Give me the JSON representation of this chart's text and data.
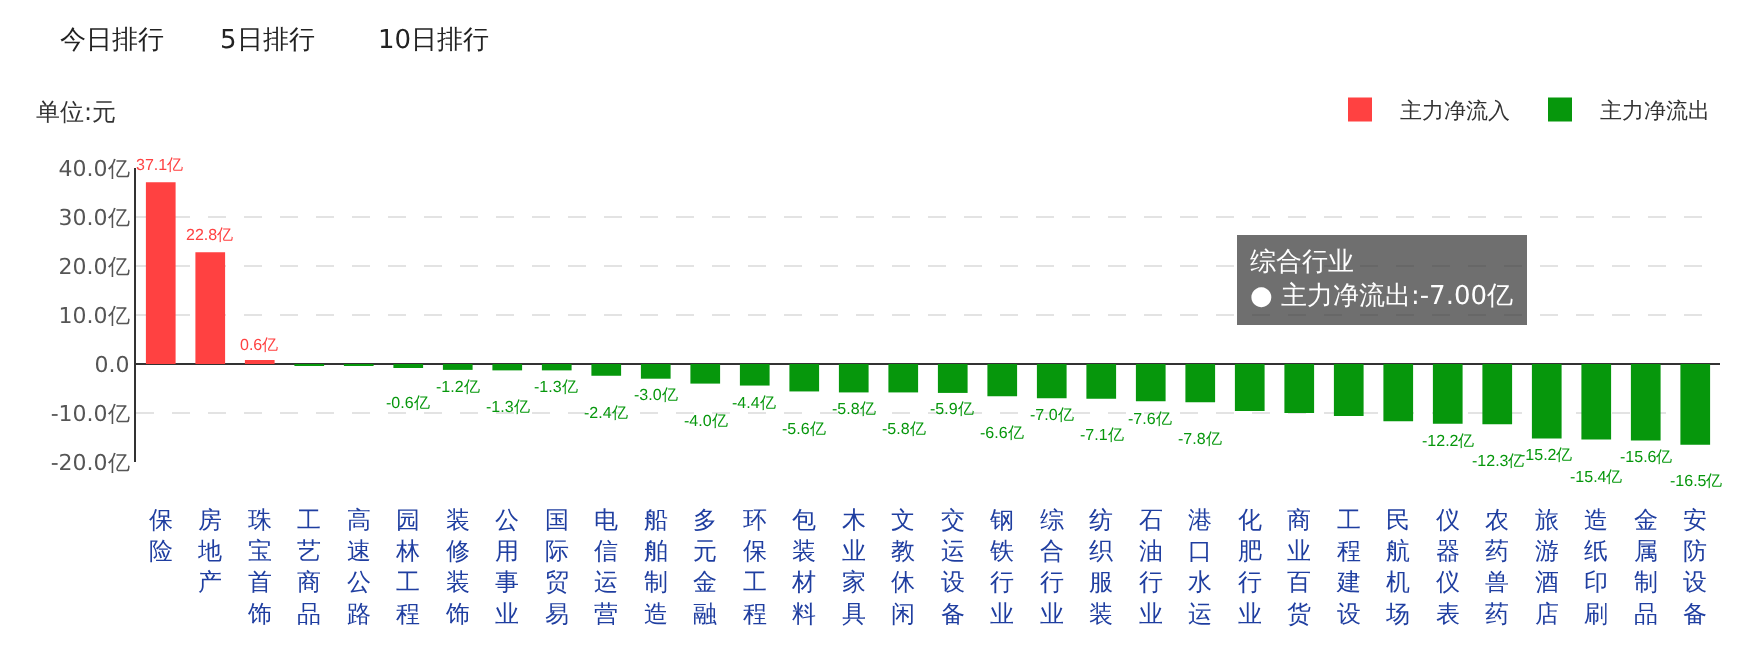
{
  "chart_data": {
    "type": "bar",
    "categories": [
      "保险",
      "房地产",
      "珠宝首饰",
      "工艺商品",
      "高速公路",
      "园林工程",
      "装修装饰",
      "公用事业",
      "国际贸易",
      "电信运营",
      "船舶制造",
      "多元金融",
      "环保工程",
      "包装材料",
      "木业家具",
      "文教休闲",
      "交运设备",
      "钢铁行业",
      "综合行业",
      "纺织服装",
      "石油行业",
      "港口水运",
      "化肥行业",
      "商业百货",
      "工程建设",
      "民航机场",
      "仪器仪表",
      "农药兽药",
      "旅游酒店",
      "造纸印刷",
      "金属制品",
      "安防设备"
    ],
    "series": [
      {
        "name": "主力净流入",
        "color": "#ff4141",
        "values": [
          37.1,
          22.8,
          0.6,
          null,
          null,
          null,
          null,
          null,
          null,
          null,
          null,
          null,
          null,
          null,
          null,
          null,
          null,
          null,
          null,
          null,
          null,
          null,
          null,
          null,
          null,
          null,
          null,
          null,
          null,
          null,
          null,
          null
        ],
        "value_labels": [
          "37.1亿",
          "22.8亿",
          "0.6亿",
          null,
          null,
          null,
          null,
          null,
          null,
          null,
          null,
          null,
          null,
          null,
          null,
          null,
          null,
          null,
          null,
          null,
          null,
          null,
          null,
          null,
          null,
          null,
          null,
          null,
          null,
          null,
          null,
          null
        ]
      },
      {
        "name": "主力净流出",
        "color": "#06970c",
        "values": [
          null,
          null,
          null,
          -0.1,
          -0.2,
          -0.6,
          -1.2,
          -1.3,
          -1.3,
          -2.4,
          -3.0,
          -4.0,
          -4.4,
          -5.6,
          -5.8,
          -5.8,
          -5.9,
          -6.6,
          -7.0,
          -7.1,
          -7.6,
          -7.8,
          -9.6,
          -10.0,
          -10.6,
          -11.7,
          -12.2,
          -12.3,
          -15.2,
          -15.4,
          -15.6,
          -16.5
        ],
        "value_labels": [
          null,
          null,
          null,
          null,
          null,
          "-0.6亿",
          "-1.2亿",
          "-1.3亿",
          "-1.3亿",
          "-2.4亿",
          "-3.0亿",
          "-4.0亿",
          "-4.4亿",
          "-5.6亿",
          "-5.8亿",
          "-5.8亿",
          "-5.9亿",
          "-6.6亿",
          "-7.0亿",
          "-7.1亿",
          "-7.6亿",
          "-7.8亿",
          null,
          null,
          null,
          null,
          "-12.2亿",
          "-12.3亿",
          "-15.2亿",
          "-15.4亿",
          "-15.6亿",
          "-16.5亿"
        ]
      }
    ],
    "ylabel": "单位:元",
    "ylim": [
      -20,
      40
    ],
    "yticks": [
      {
        "value": -20,
        "label": "-20.0亿"
      },
      {
        "value": -10,
        "label": "-10.0亿"
      },
      {
        "value": 0,
        "label": "0.0"
      },
      {
        "value": 10,
        "label": "10.0亿"
      },
      {
        "value": 20,
        "label": "20.0亿"
      },
      {
        "value": 30,
        "label": "30.0亿"
      },
      {
        "value": 40,
        "label": "40.0亿"
      }
    ],
    "grid": "y",
    "legend": "top right",
    "annotations": [
      "今日排行",
      "5日排行",
      "10日排行",
      "综合行业\n● 主力净流出:-7.00亿"
    ]
  }
}
